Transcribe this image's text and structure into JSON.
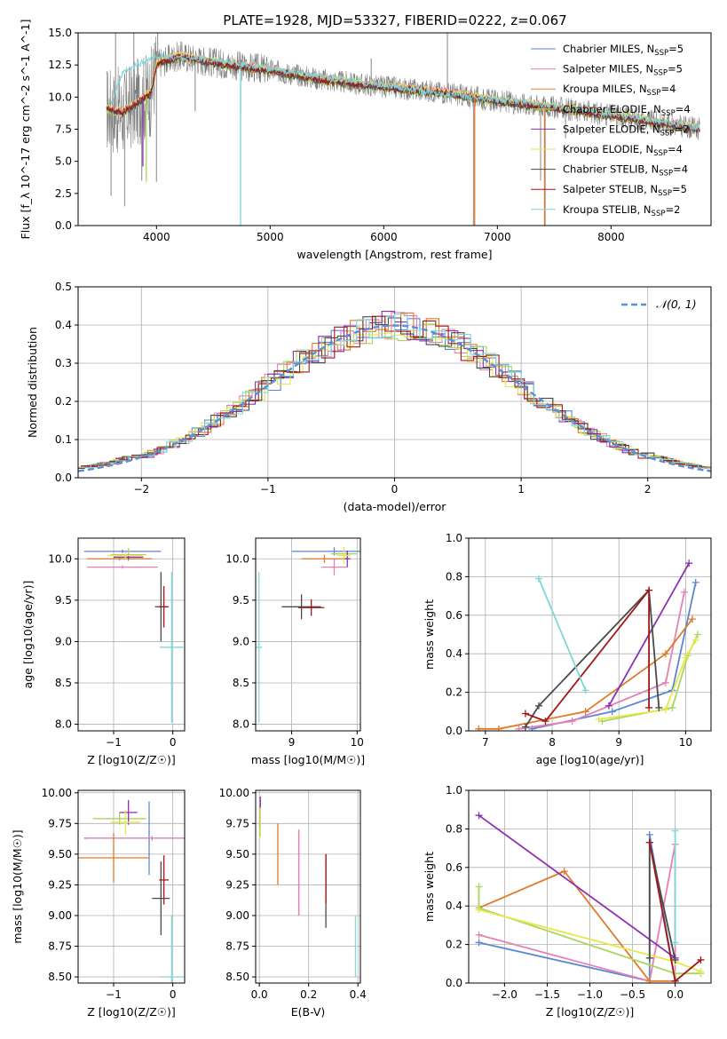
{
  "title": "PLATE=1928, MJD=53327, FIBERID=0222, z=0.067",
  "colors": {
    "chabrier_miles": "#5b86d6",
    "salpeter_miles": "#e680b5",
    "kroupa_miles": "#e07b28",
    "chabrier_elodie": "#aad65c",
    "salpeter_elodie": "#8e2fb0",
    "kroupa_elodie": "#e6e64d",
    "chabrier_stelib": "#4a4a4a",
    "salpeter_stelib": "#a01818",
    "kroupa_stelib": "#7fd6d6",
    "data": "#7f7f7f",
    "normal": "#5b8fd6"
  },
  "chart_data": [
    {
      "id": "spectrum",
      "type": "line",
      "xlabel": "wavelength [Angstrom, rest frame]",
      "ylabel": "Flux [f_λ 10^-17 erg cm^-2 s^-1 A^-1]",
      "xlim": [
        3310,
        8880
      ],
      "ylim": [
        0,
        15
      ],
      "xticks": [
        "4000",
        "5000",
        "6000",
        "7000",
        "8000"
      ],
      "yticks": [
        "0.0",
        "2.5",
        "5.0",
        "7.5",
        "10.0",
        "12.5",
        "15.0"
      ],
      "legend_position": "top-right",
      "legend": [
        {
          "name": "Chabrier MILES, N",
          "sub": "SSP",
          "tail": "=5",
          "color": "#5b86d6"
        },
        {
          "name": "Salpeter MILES, N",
          "sub": "SSP",
          "tail": "=5",
          "color": "#e680b5"
        },
        {
          "name": "Kroupa MILES, N",
          "sub": "SSP",
          "tail": "=4",
          "color": "#e07b28"
        },
        {
          "name": "Chabrier ELODIE, N",
          "sub": "SSP",
          "tail": "=4",
          "color": "#aad65c"
        },
        {
          "name": "Salpeter ELODIE, N",
          "sub": "SSP",
          "tail": "=2",
          "color": "#8e2fb0"
        },
        {
          "name": "Kroupa ELODIE, N",
          "sub": "SSP",
          "tail": "=4",
          "color": "#e6e64d"
        },
        {
          "name": "Chabrier STELIB, N",
          "sub": "SSP",
          "tail": "=4",
          "color": "#4a4a4a"
        },
        {
          "name": "Salpeter STELIB, N",
          "sub": "SSP",
          "tail": "=5",
          "color": "#a01818"
        },
        {
          "name": "Kroupa STELIB, N",
          "sub": "SSP",
          "tail": "=2",
          "color": "#7fd6d6"
        }
      ],
      "model_continuum": [
        [
          3560,
          9.1
        ],
        [
          3700,
          8.8
        ],
        [
          3800,
          9.4
        ],
        [
          3950,
          10.3
        ],
        [
          4000,
          12.6
        ],
        [
          4200,
          13.2
        ],
        [
          4500,
          12.7
        ],
        [
          5000,
          12.1
        ],
        [
          5500,
          11.3
        ],
        [
          6000,
          10.8
        ],
        [
          6500,
          10.4
        ],
        [
          7000,
          9.7
        ],
        [
          7500,
          9.2
        ],
        [
          8000,
          8.6
        ],
        [
          8500,
          7.9
        ],
        [
          8800,
          7.5
        ]
      ],
      "kroupa_stelib_continuum": [
        [
          3600,
          9.6
        ],
        [
          3700,
          11.8
        ],
        [
          3850,
          12.6
        ],
        [
          4000,
          13.2
        ],
        [
          4500,
          12.9
        ],
        [
          5000,
          12.2
        ],
        [
          5500,
          11.5
        ],
        [
          6000,
          10.9
        ],
        [
          6500,
          10.3
        ],
        [
          7000,
          9.8
        ],
        [
          7500,
          9.3
        ],
        [
          8000,
          8.7
        ],
        [
          8500,
          8.0
        ],
        [
          8800,
          7.6
        ]
      ],
      "data_spikes": [
        [
          3600,
          2.3
        ],
        [
          3640,
          15.0
        ],
        [
          3720,
          1.5
        ],
        [
          3800,
          15.0
        ],
        [
          3870,
          3.5
        ],
        [
          4000,
          3.4
        ],
        [
          4010,
          15.0
        ],
        [
          4340,
          8.9
        ],
        [
          4740,
          8.6
        ],
        [
          5890,
          13.0
        ],
        [
          6560,
          15.0
        ],
        [
          6790,
          0.0
        ],
        [
          7380,
          3.5
        ],
        [
          7420,
          0.0
        ],
        [
          7600,
          6.8
        ]
      ]
    },
    {
      "id": "residuals",
      "type": "line",
      "xlabel": "(data-model)/error",
      "ylabel": "Normed distribution",
      "xlim": [
        -2.5,
        2.5
      ],
      "ylim": [
        0,
        0.5
      ],
      "grid": true,
      "xticks": [
        "−2",
        "−1",
        "0",
        "1",
        "2"
      ],
      "yticks": [
        "0.0",
        "0.1",
        "0.2",
        "0.3",
        "0.4",
        "0.5"
      ],
      "legend_position": "top-right",
      "legend": [
        {
          "name": "𝒩(0, 1)",
          "color": "#5b8fd6",
          "dashed": true
        }
      ],
      "normal_pdf": {
        "mean": 0,
        "sigma": 1
      }
    },
    {
      "id": "age_vs_Z",
      "type": "scatter",
      "xlabel": "Z [log10(Z/Z☉)]",
      "ylabel": "age [log10(age/yr)]",
      "xlim": [
        -1.6,
        0.2
      ],
      "ylim": [
        7.92,
        10.25
      ],
      "xticks": [
        "−1",
        "0"
      ],
      "yticks": [
        "8.0",
        "8.5",
        "9.0",
        "9.5",
        "10.0"
      ],
      "grid": true,
      "errorbars": [
        {
          "x": -0.85,
          "y": 10.09,
          "xerr": 0.65,
          "yerr": 0.02,
          "color": "#5b86d6"
        },
        {
          "x": -0.85,
          "y": 9.9,
          "xerr": 0.6,
          "yerr": 0.02,
          "color": "#e680b5"
        },
        {
          "x": -0.9,
          "y": 10.0,
          "xerr": 0.55,
          "yerr": 0.02,
          "color": "#e07b28"
        },
        {
          "x": -0.75,
          "y": 10.05,
          "xerr": 0.3,
          "yerr": 0.08,
          "color": "#aad65c"
        },
        {
          "x": -0.75,
          "y": 10.02,
          "xerr": 0.25,
          "yerr": 0.03,
          "color": "#8e2fb0"
        },
        {
          "x": -0.8,
          "y": 10.04,
          "xerr": 0.3,
          "yerr": 0.04,
          "color": "#e6e64d"
        },
        {
          "x": -0.2,
          "y": 9.42,
          "xerr": 0.1,
          "yerr": 0.42,
          "color": "#4a4a4a"
        },
        {
          "x": -0.15,
          "y": 9.42,
          "xerr": 0.08,
          "yerr": 0.25,
          "color": "#a01818"
        },
        {
          "x": -0.02,
          "y": 8.93,
          "xerr": 0.2,
          "yerr": 0.91,
          "color": "#7fd6d6"
        }
      ]
    },
    {
      "id": "age_vs_mass",
      "type": "scatter",
      "xlabel": "mass [log10(M/M☉)]",
      "ylabel": "",
      "xlim": [
        8.45,
        10.05
      ],
      "ylim": [
        7.92,
        10.25
      ],
      "xticks": [
        "9",
        "10"
      ],
      "yticks": [
        "8.0",
        "8.5",
        "9.0",
        "9.5",
        "10.0"
      ],
      "grid": true,
      "errorbars": [
        {
          "x": 9.65,
          "y": 10.09,
          "xerr": 0.65,
          "yerr": 0.05,
          "color": "#5b86d6"
        },
        {
          "x": 9.65,
          "y": 9.9,
          "xerr": 0.2,
          "yerr": 0.1,
          "color": "#e680b5"
        },
        {
          "x": 9.5,
          "y": 10.0,
          "xerr": 0.35,
          "yerr": 0.05,
          "color": "#e07b28"
        },
        {
          "x": 9.8,
          "y": 10.06,
          "xerr": 0.2,
          "yerr": 0.08,
          "color": "#aad65c"
        },
        {
          "x": 9.85,
          "y": 10.0,
          "xerr": 0.05,
          "yerr": 0.1,
          "color": "#8e2fb0"
        },
        {
          "x": 9.8,
          "y": 10.04,
          "xerr": 0.1,
          "yerr": 0.1,
          "color": "#e6e64d"
        },
        {
          "x": 9.15,
          "y": 9.42,
          "xerr": 0.3,
          "yerr": 0.15,
          "color": "#4a4a4a"
        },
        {
          "x": 9.3,
          "y": 9.41,
          "xerr": 0.2,
          "yerr": 0.1,
          "color": "#a01818"
        },
        {
          "x": 8.5,
          "y": 8.93,
          "xerr": 0.05,
          "yerr": 0.91,
          "color": "#7fd6d6"
        }
      ]
    },
    {
      "id": "massweight_vs_age",
      "type": "line",
      "xlabel": "age [log10(age/yr)]",
      "ylabel": "mass weight",
      "xlim": [
        6.75,
        10.38
      ],
      "ylim": [
        0,
        1
      ],
      "xticks": [
        "7",
        "8",
        "9",
        "10"
      ],
      "yticks": [
        "0.0",
        "0.2",
        "0.4",
        "0.6",
        "0.8",
        "1.0"
      ],
      "grid": true,
      "series": [
        {
          "color": "#5b86d6",
          "points": [
            [
              7.7,
              0.01
            ],
            [
              8.9,
              0.1
            ],
            [
              9.8,
              0.21
            ],
            [
              10.15,
              0.77
            ]
          ]
        },
        {
          "color": "#e680b5",
          "points": [
            [
              7.5,
              0.01
            ],
            [
              8.3,
              0.05
            ],
            [
              9.7,
              0.25
            ],
            [
              9.98,
              0.72
            ]
          ]
        },
        {
          "color": "#e07b28",
          "points": [
            [
              6.9,
              0.01
            ],
            [
              7.2,
              0.01
            ],
            [
              8.5,
              0.1
            ],
            [
              9.7,
              0.4
            ],
            [
              10.1,
              0.58
            ]
          ]
        },
        {
          "color": "#aad65c",
          "points": [
            [
              8.75,
              0.05
            ],
            [
              9.8,
              0.12
            ],
            [
              10.03,
              0.39
            ],
            [
              10.18,
              0.5
            ]
          ]
        },
        {
          "color": "#8e2fb0",
          "points": [
            [
              8.85,
              0.13
            ],
            [
              10.05,
              0.87
            ]
          ]
        },
        {
          "color": "#e6e64d",
          "points": [
            [
              8.7,
              0.06
            ],
            [
              9.7,
              0.11
            ],
            [
              10.0,
              0.38
            ],
            [
              10.15,
              0.47
            ]
          ]
        },
        {
          "color": "#4a4a4a",
          "points": [
            [
              7.6,
              0.02
            ],
            [
              7.8,
              0.13
            ],
            [
              9.45,
              0.73
            ],
            [
              9.6,
              0.12
            ]
          ]
        },
        {
          "color": "#a01818",
          "points": [
            [
              7.6,
              0.09
            ],
            [
              7.9,
              0.05
            ],
            [
              9.45,
              0.73
            ],
            [
              9.45,
              0.12
            ]
          ]
        },
        {
          "color": "#7fd6d6",
          "points": [
            [
              7.8,
              0.79
            ],
            [
              8.5,
              0.21
            ]
          ]
        }
      ]
    },
    {
      "id": "mass_vs_Z",
      "type": "scatter",
      "xlabel": "Z [log10(Z/Z☉)]",
      "ylabel": "mass [log10(M/M☉)]",
      "xlim": [
        -1.6,
        0.2
      ],
      "ylim": [
        8.45,
        10.02
      ],
      "xticks": [
        "−1",
        "0"
      ],
      "yticks": [
        "8.50",
        "8.75",
        "9.00",
        "9.25",
        "9.50",
        "9.75",
        "10.00"
      ],
      "grid": true,
      "errorbars": [
        {
          "x": -0.4,
          "y": 9.63,
          "xerr": 1.1,
          "yerr": 0.3,
          "color": "#5b86d6"
        },
        {
          "x": -0.35,
          "y": 9.63,
          "xerr": 1.1,
          "yerr": 0.02,
          "color": "#e680b5"
        },
        {
          "x": -1.0,
          "y": 9.47,
          "xerr": 0.6,
          "yerr": 0.2,
          "color": "#e07b28"
        },
        {
          "x": -0.9,
          "y": 9.79,
          "xerr": 0.45,
          "yerr": 0.05,
          "color": "#aad65c"
        },
        {
          "x": -0.75,
          "y": 9.84,
          "xerr": 0.15,
          "yerr": 0.1,
          "color": "#8e2fb0"
        },
        {
          "x": -0.8,
          "y": 9.76,
          "xerr": 0.25,
          "yerr": 0.1,
          "color": "#e6e64d"
        },
        {
          "x": -0.2,
          "y": 9.14,
          "xerr": 0.15,
          "yerr": 0.3,
          "color": "#4a4a4a"
        },
        {
          "x": -0.15,
          "y": 9.29,
          "xerr": 0.08,
          "yerr": 0.2,
          "color": "#a01818"
        },
        {
          "x": -0.02,
          "y": 8.5,
          "xerr": 0.2,
          "yerr": 0.5,
          "color": "#7fd6d6"
        }
      ]
    },
    {
      "id": "mass_vs_EBV",
      "type": "scatter",
      "xlabel": "E(B-V)",
      "ylabel": "",
      "xlim": [
        -0.015,
        0.41
      ],
      "ylim": [
        8.45,
        10.02
      ],
      "xticks": [
        "0.0",
        "0.2",
        "0.4"
      ],
      "yticks": [
        "8.50",
        "8.75",
        "9.00",
        "9.25",
        "9.50",
        "9.75",
        "10.00"
      ],
      "grid": true,
      "errorbars": [
        {
          "x": 0.16,
          "y": 9.35,
          "xerr": 0.0,
          "yerr": 0.35,
          "color": "#5b86d6"
        },
        {
          "x": 0.16,
          "y": 9.35,
          "xerr": 0.0,
          "yerr": 0.35,
          "color": "#e680b5"
        },
        {
          "x": 0.075,
          "y": 9.5,
          "xerr": 0.0,
          "yerr": 0.25,
          "color": "#e07b28"
        },
        {
          "x": 0.004,
          "y": 9.8,
          "xerr": 0.0,
          "yerr": 0.15,
          "color": "#aad65c"
        },
        {
          "x": 0.004,
          "y": 9.85,
          "xerr": 0.0,
          "yerr": 0.12,
          "color": "#8e2fb0"
        },
        {
          "x": 0.004,
          "y": 9.76,
          "xerr": 0.0,
          "yerr": 0.12,
          "color": "#e6e64d"
        },
        {
          "x": 0.27,
          "y": 9.2,
          "xerr": 0.0,
          "yerr": 0.3,
          "color": "#4a4a4a"
        },
        {
          "x": 0.27,
          "y": 9.3,
          "xerr": 0.0,
          "yerr": 0.2,
          "color": "#a01818"
        },
        {
          "x": 0.39,
          "y": 8.75,
          "xerr": 0.0,
          "yerr": 0.25,
          "color": "#7fd6d6"
        }
      ]
    },
    {
      "id": "massweight_vs_Z",
      "type": "line",
      "xlabel": "Z [log10(Z/Z☉)]",
      "ylabel": "mass weight",
      "xlim": [
        -2.42,
        0.42
      ],
      "ylim": [
        0,
        1
      ],
      "xticks": [
        "−2.0",
        "−1.5",
        "−1.0",
        "−0.5",
        "0.0"
      ],
      "yticks": [
        "0.0",
        "0.2",
        "0.4",
        "0.6",
        "0.8",
        "1.0"
      ],
      "grid": true,
      "series": [
        {
          "color": "#5b86d6",
          "points": [
            [
              -2.3,
              0.21
            ],
            [
              -0.3,
              0.01
            ],
            [
              -0.3,
              0.77
            ],
            [
              0.0,
              0.01
            ]
          ]
        },
        {
          "color": "#e680b5",
          "points": [
            [
              -2.3,
              0.25
            ],
            [
              -0.3,
              0.01
            ],
            [
              0.0,
              0.72
            ],
            [
              0.0,
              0.01
            ]
          ]
        },
        {
          "color": "#e07b28",
          "points": [
            [
              -2.3,
              0.39
            ],
            [
              -1.3,
              0.58
            ],
            [
              -0.3,
              0.01
            ],
            [
              0.0,
              0.01
            ]
          ]
        },
        {
          "color": "#aad65c",
          "points": [
            [
              -2.3,
              0.5
            ],
            [
              -2.3,
              0.39
            ],
            [
              0.0,
              0.05
            ],
            [
              0.3,
              0.05
            ]
          ]
        },
        {
          "color": "#8e2fb0",
          "points": [
            [
              -2.3,
              0.87
            ],
            [
              0.0,
              0.13
            ]
          ]
        },
        {
          "color": "#e6e64d",
          "points": [
            [
              -2.3,
              0.38
            ],
            [
              0.0,
              0.11
            ],
            [
              0.3,
              0.06
            ]
          ]
        },
        {
          "color": "#4a4a4a",
          "points": [
            [
              -0.3,
              0.13
            ],
            [
              -0.3,
              0.73
            ],
            [
              0.0,
              0.12
            ]
          ]
        },
        {
          "color": "#a01818",
          "points": [
            [
              -0.3,
              0.73
            ],
            [
              0.0,
              0.01
            ],
            [
              0.3,
              0.12
            ]
          ]
        },
        {
          "color": "#7fd6d6",
          "points": [
            [
              0.0,
              0.79
            ],
            [
              0.0,
              0.21
            ]
          ]
        }
      ]
    }
  ]
}
